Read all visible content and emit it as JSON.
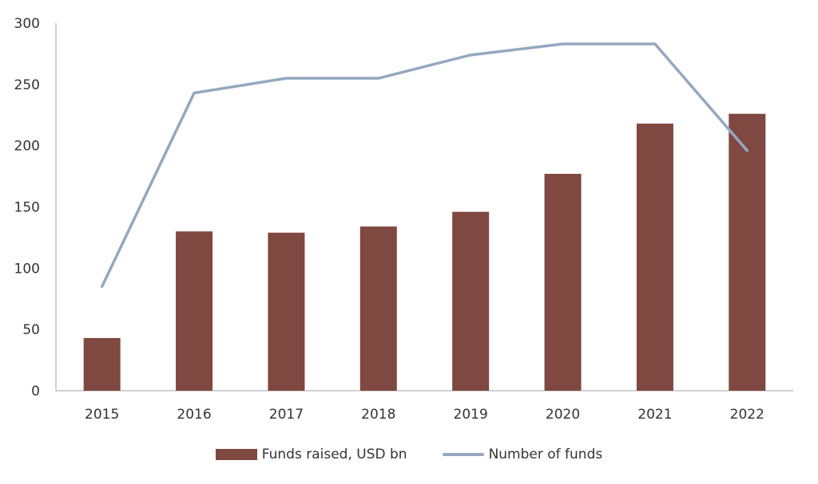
{
  "chart_data": {
    "type": "bar",
    "categories": [
      "2015",
      "2016",
      "2017",
      "2018",
      "2019",
      "2020",
      "2021",
      "2022"
    ],
    "series": [
      {
        "name": "Funds raised, USD bn",
        "type": "bar",
        "color": "#7f4840",
        "values": [
          43,
          130,
          129,
          134,
          146,
          177,
          218,
          226
        ]
      },
      {
        "name": "Number of funds",
        "type": "line",
        "color": "#94a8bf",
        "values": [
          85,
          243,
          255,
          255,
          274,
          283,
          283,
          196
        ]
      }
    ],
    "ylim": [
      0,
      300
    ],
    "yticks": [
      "0",
      "50",
      "100",
      "150",
      "200",
      "250",
      "300"
    ],
    "grid": false,
    "legend": "bottom"
  }
}
